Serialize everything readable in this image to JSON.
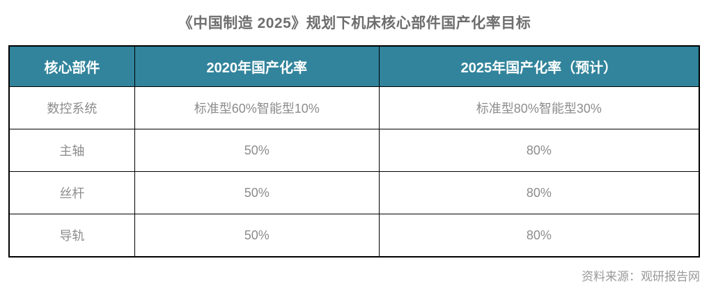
{
  "title": "《中国制造 2025》规划下机床核心部件国产化率目标",
  "table": {
    "header": [
      "核心部件",
      "2020年国产化率",
      "2025年国产化率（预计）"
    ],
    "rows": [
      [
        "数控系统",
        "标准型60%智能型10%",
        "标准型80%智能型30%"
      ],
      [
        "主轴",
        "50%",
        "80%"
      ],
      [
        "丝杆",
        "50%",
        "80%"
      ],
      [
        "导轨",
        "50%",
        "80%"
      ]
    ]
  },
  "footer": {
    "source": "资料来源：观研报告网"
  },
  "theme": {
    "header_bg": "#31849B",
    "header_text": "#FFFFFF",
    "body_text": "#8C8C8C",
    "border": "#000000",
    "title_text": "#6E6E6E"
  },
  "chart_data": {
    "type": "table",
    "title": "《中国制造 2025》规划下机床核心部件国产化率目标",
    "columns": [
      "核心部件",
      "2020年国产化率",
      "2025年国产化率（预计）"
    ],
    "rows": [
      [
        "数控系统",
        "标准型60%智能型10%",
        "标准型80%智能型30%"
      ],
      [
        "主轴",
        "50%",
        "80%"
      ],
      [
        "丝杆",
        "50%",
        "80%"
      ],
      [
        "导轨",
        "50%",
        "80%"
      ]
    ],
    "source": "资料来源：观研报告网",
    "layout_hints": {
      "header_background": "#31849B",
      "header_text_color": "#FFFFFF",
      "grid": true,
      "title_position": "top-center",
      "source_position": "bottom-right"
    }
  }
}
